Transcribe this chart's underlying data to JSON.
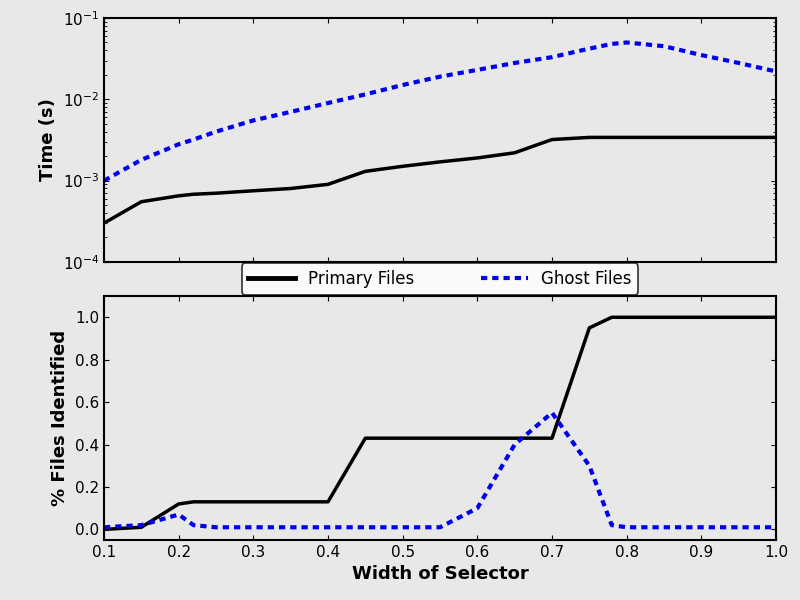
{
  "x": [
    0.1,
    0.15,
    0.2,
    0.22,
    0.25,
    0.3,
    0.35,
    0.4,
    0.45,
    0.5,
    0.55,
    0.6,
    0.65,
    0.7,
    0.75,
    0.78,
    0.8,
    0.85,
    0.9,
    0.95,
    1.0
  ],
  "time_primary": [
    0.0003,
    0.00055,
    0.00065,
    0.00068,
    0.0007,
    0.00075,
    0.0008,
    0.0009,
    0.0013,
    0.0015,
    0.0017,
    0.0019,
    0.0022,
    0.0032,
    0.0034,
    0.0034,
    0.0034,
    0.0034,
    0.0034,
    0.0034,
    0.0034
  ],
  "time_ghost": [
    0.001,
    0.0018,
    0.0028,
    0.0032,
    0.004,
    0.0055,
    0.007,
    0.009,
    0.0115,
    0.015,
    0.019,
    0.023,
    0.028,
    0.033,
    0.042,
    0.048,
    0.05,
    0.045,
    0.035,
    0.028,
    0.022
  ],
  "pct_primary": [
    0.0,
    0.01,
    0.12,
    0.13,
    0.13,
    0.13,
    0.13,
    0.13,
    0.43,
    0.43,
    0.43,
    0.43,
    0.43,
    0.43,
    0.95,
    1.0,
    1.0,
    1.0,
    1.0,
    1.0,
    1.0
  ],
  "pct_ghost": [
    0.01,
    0.02,
    0.07,
    0.02,
    0.01,
    0.01,
    0.01,
    0.01,
    0.01,
    0.01,
    0.01,
    0.1,
    0.4,
    0.55,
    0.3,
    0.02,
    0.01,
    0.01,
    0.01,
    0.01,
    0.01
  ],
  "primary_color": "#000000",
  "ghost_color": "#0000ee",
  "xlim": [
    0.1,
    1.0
  ],
  "time_ylim": [
    0.0001,
    0.1
  ],
  "pct_ylim": [
    -0.05,
    1.1
  ],
  "xlabel": "Width of Selector",
  "ylabel_top": "Time (s)",
  "ylabel_bottom": "% Files Identified",
  "legend_primary": "Primary Files",
  "legend_ghost": "Ghost Files",
  "xticks": [
    0.1,
    0.2,
    0.3,
    0.4,
    0.5,
    0.6,
    0.7,
    0.8,
    0.9,
    1.0
  ],
  "pct_yticks": [
    0.0,
    0.2,
    0.4,
    0.6,
    0.8,
    1.0
  ],
  "linewidth": 2.5,
  "bg_color": "#e8e8e8"
}
